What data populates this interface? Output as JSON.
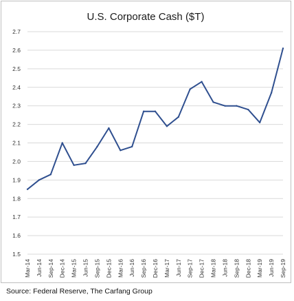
{
  "chart_data": {
    "type": "line",
    "title": "U.S. Corporate Cash ($T)",
    "xlabel": "",
    "ylabel": "",
    "ylim": [
      1.5,
      2.7
    ],
    "y_ticks": [
      "1.5",
      "1.6",
      "1.7",
      "1.8",
      "1.9",
      "2.0",
      "2.1",
      "2.2",
      "2.3",
      "2.4",
      "2.5",
      "2.6",
      "2.7"
    ],
    "categories": [
      "Mar-14",
      "Jun-14",
      "Sep-14",
      "Dec-14",
      "Mar-15",
      "Jun-15",
      "Sep-15",
      "Dec-15",
      "Mar-16",
      "Jun-16",
      "Sep-16",
      "Dec-16",
      "Mar-17",
      "Jun-17",
      "Sep-17",
      "Dec-17",
      "Mar-18",
      "Jun-18",
      "Sep-18",
      "Dec-18",
      "Mar-19",
      "Jun-19",
      "Sep-19"
    ],
    "series": [
      {
        "values": [
          1.85,
          1.9,
          1.93,
          2.1,
          1.98,
          1.99,
          2.08,
          2.18,
          2.06,
          2.08,
          2.27,
          2.27,
          2.19,
          2.24,
          2.39,
          2.43,
          2.32,
          2.3,
          2.3,
          2.28,
          2.21,
          2.37,
          2.61
        ]
      }
    ],
    "grid": "horizontal",
    "legend": "none",
    "line_color": "#2f4f8f"
  },
  "source_note": "Source:  Federal Reserve, The Carfang Group"
}
